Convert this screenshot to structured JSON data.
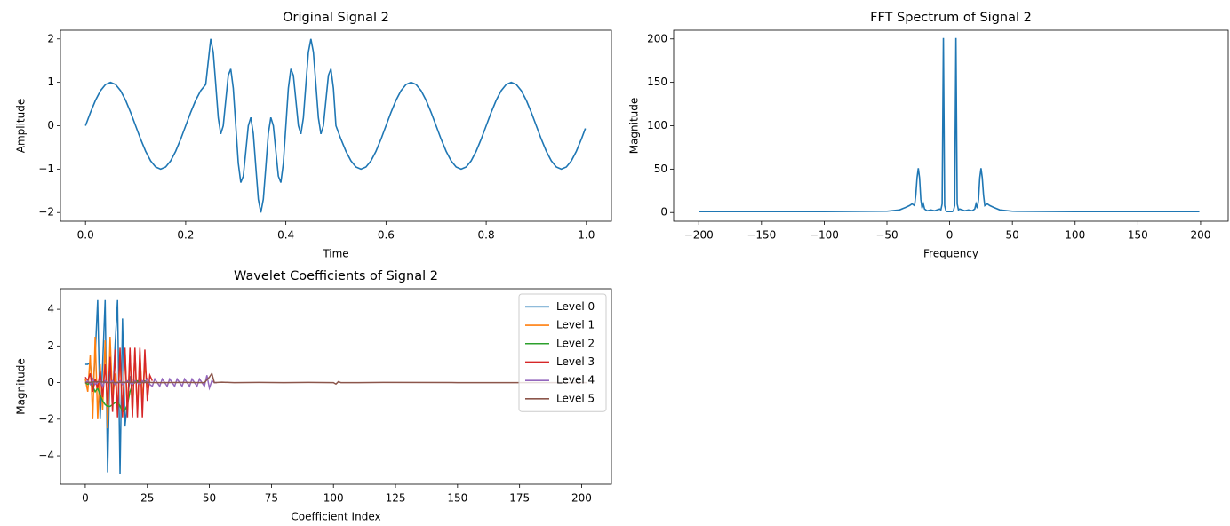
{
  "chart_data": [
    {
      "type": "line",
      "title": "Original Signal 2",
      "xlabel": "Time",
      "ylabel": "Amplitude",
      "color": "#1f77b4",
      "x": [
        0,
        0.01,
        0.02,
        0.03,
        0.04,
        0.05,
        0.06,
        0.07,
        0.08,
        0.09,
        0.1,
        0.11,
        0.12,
        0.13,
        0.14,
        0.15,
        0.16,
        0.17,
        0.18,
        0.19,
        0.2,
        0.21,
        0.22,
        0.23,
        0.24,
        0.25,
        0.255,
        0.26,
        0.265,
        0.27,
        0.275,
        0.28,
        0.285,
        0.29,
        0.295,
        0.3,
        0.305,
        0.31,
        0.315,
        0.32,
        0.325,
        0.33,
        0.335,
        0.34,
        0.345,
        0.35,
        0.355,
        0.36,
        0.365,
        0.37,
        0.375,
        0.38,
        0.385,
        0.39,
        0.395,
        0.4,
        0.405,
        0.41,
        0.415,
        0.42,
        0.425,
        0.43,
        0.435,
        0.44,
        0.445,
        0.45,
        0.455,
        0.46,
        0.465,
        0.47,
        0.475,
        0.48,
        0.485,
        0.49,
        0.495,
        0.5,
        0.51,
        0.52,
        0.53,
        0.54,
        0.55,
        0.56,
        0.57,
        0.58,
        0.59,
        0.6,
        0.61,
        0.62,
        0.63,
        0.64,
        0.65,
        0.66,
        0.67,
        0.68,
        0.69,
        0.7,
        0.71,
        0.72,
        0.73,
        0.74,
        0.75,
        0.76,
        0.77,
        0.78,
        0.79,
        0.8,
        0.81,
        0.82,
        0.83,
        0.84,
        0.85,
        0.86,
        0.87,
        0.88,
        0.89,
        0.9,
        0.91,
        0.92,
        0.93,
        0.94,
        0.95,
        0.96,
        0.97,
        0.98,
        0.99,
        0.998
      ],
      "values": [
        0,
        0.309,
        0.588,
        0.809,
        0.951,
        1,
        0.951,
        0.809,
        0.588,
        0.309,
        0,
        -0.309,
        -0.588,
        -0.809,
        -0.951,
        -1,
        -0.951,
        -0.809,
        -0.588,
        -0.309,
        0,
        0.309,
        0.588,
        0.809,
        0.951,
        2,
        1.695,
        0.951,
        0.184,
        -0.191,
        0,
        0.588,
        1.161,
        1.309,
        0.863,
        0,
        -0.863,
        -1.309,
        -1.161,
        -0.588,
        0,
        0.191,
        -0.184,
        -0.951,
        -1.695,
        -2,
        -1.695,
        -0.951,
        -0.184,
        0.191,
        0,
        -0.588,
        -1.161,
        -1.309,
        -0.863,
        0,
        0.863,
        1.309,
        1.161,
        0.588,
        0,
        -0.191,
        0.184,
        0.951,
        1.695,
        2,
        1.695,
        0.951,
        0.184,
        -0.191,
        0,
        0.588,
        1.161,
        1.309,
        0.863,
        0,
        -0.309,
        -0.588,
        -0.809,
        -0.951,
        -1,
        -0.951,
        -0.809,
        -0.588,
        -0.309,
        0,
        0.309,
        0.588,
        0.809,
        0.951,
        1,
        0.951,
        0.809,
        0.588,
        0.309,
        0,
        -0.309,
        -0.588,
        -0.809,
        -0.951,
        -1,
        -0.951,
        -0.809,
        -0.588,
        -0.309,
        0,
        0.309,
        0.588,
        0.809,
        0.951,
        1,
        0.951,
        0.809,
        0.588,
        0.309,
        0,
        -0.309,
        -0.588,
        -0.809,
        -0.951,
        -1,
        -0.951,
        -0.809,
        -0.588,
        -0.309,
        -0.063
      ],
      "xlim": [
        -0.05,
        1.05
      ],
      "ylim": [
        -2.2,
        2.2
      ],
      "xticks": [
        {
          "value": 0,
          "label": "0.0"
        },
        0.2,
        0.4,
        0.6,
        0.8,
        {
          "value": 1,
          "label": "1.0"
        }
      ],
      "yticks": [
        {
          "value": -2,
          "label": "−2"
        },
        {
          "value": -1,
          "label": "−1"
        },
        0,
        1,
        2
      ]
    },
    {
      "type": "line",
      "title": "FFT Spectrum of Signal 2",
      "xlabel": "Frequency",
      "ylabel": "Magnitude",
      "color": "#1f77b4",
      "x": [
        -200,
        -100,
        -50,
        -40,
        -35,
        -32,
        -30,
        -28,
        -27,
        -26,
        -25,
        -24,
        -23,
        -22,
        -21,
        -20,
        -18,
        -15,
        -12,
        -10,
        -8,
        -7,
        -6,
        -5,
        -4,
        -3,
        -2,
        0,
        2,
        3,
        4,
        5,
        6,
        7,
        8,
        10,
        12,
        15,
        18,
        20,
        21,
        22,
        23,
        24,
        25,
        26,
        27,
        28,
        30,
        32,
        35,
        40,
        50,
        100,
        199
      ],
      "values": [
        1,
        1,
        1.5,
        3,
        6,
        8,
        10,
        8,
        20,
        40,
        51,
        40,
        15,
        5,
        10,
        4,
        2,
        3,
        2,
        3,
        4,
        3,
        10,
        201,
        8,
        2,
        1,
        1,
        1,
        2,
        8,
        201,
        10,
        3,
        4,
        3,
        2,
        3,
        2,
        4,
        10,
        5,
        15,
        40,
        51,
        40,
        20,
        8,
        10,
        8,
        6,
        3,
        1.5,
        1,
        1
      ],
      "xlim": [
        -220,
        222
      ],
      "ylim": [
        -10,
        210
      ],
      "xticks": [
        {
          "value": -200,
          "label": "−200"
        },
        {
          "value": -150,
          "label": "−150"
        },
        {
          "value": -100,
          "label": "−100"
        },
        {
          "value": -50,
          "label": "−50"
        },
        0,
        50,
        100,
        150,
        200
      ],
      "yticks": [
        0,
        50,
        100,
        150,
        200
      ]
    },
    {
      "type": "multiline",
      "title": "Wavelet Coefficients of Signal 2",
      "xlabel": "Coefficient Index",
      "ylabel": "Magnitude",
      "legend": "upper right",
      "xlim": [
        -10,
        212
      ],
      "ylim": [
        -5.55,
        5.12
      ],
      "xticks": [
        0,
        25,
        50,
        75,
        100,
        125,
        150,
        175,
        200
      ],
      "yticks": [
        {
          "value": -4,
          "label": "−4"
        },
        {
          "value": -2,
          "label": "−2"
        },
        0,
        2,
        4
      ],
      "series": [
        {
          "name": "Level 0",
          "color": "#1f77b4",
          "values": [
            1.0,
            1.0,
            1.1,
            -0.5,
            1.5,
            4.5,
            -2.0,
            1.0,
            4.5,
            -4.9,
            1.5,
            -1.0,
            2.0,
            4.5,
            -5.0,
            3.5,
            -2.4,
            -1.0,
            0.3,
            0.1
          ]
        },
        {
          "name": "Level 1",
          "color": "#ff7f0e",
          "values": [
            0.2,
            -0.5,
            1.5,
            -2.0,
            2.5,
            -2.0,
            1.0,
            -1.5,
            2.3,
            -2.5,
            2.5,
            -1.0,
            0.5,
            -1.5,
            1.5,
            -1.8,
            1.8,
            -1.6,
            1.6,
            -1.8,
            1.8,
            -1.7,
            1.7,
            -1.0,
            1.0,
            -0.3,
            0.1
          ]
        },
        {
          "name": "Level 2",
          "color": "#2ca02c",
          "values": [
            0,
            -0.1,
            0,
            -0.2,
            -0.5,
            -0.3,
            -0.7,
            -1.0,
            -1.2,
            -1.3,
            -1.3,
            -1.2,
            -1.1,
            -1.0,
            -1.3,
            -1.6,
            -1.5,
            -1.2,
            -0.5,
            -0.1,
            0,
            0.1,
            0,
            0,
            0.1,
            0,
            0
          ]
        },
        {
          "name": "Level 3",
          "color": "#d62728",
          "values": [
            0.3,
            0.1,
            0.5,
            -0.5,
            0.2,
            -0.3,
            0.6,
            -0.8,
            1.0,
            -1.2,
            1.4,
            -1.6,
            1.8,
            -1.9,
            1.9,
            -1.9,
            1.9,
            -1.9,
            1.9,
            -1.9,
            1.9,
            -1.9,
            1.9,
            -1.9,
            1.8,
            -1.0,
            0.4,
            0.1
          ]
        },
        {
          "name": "Level 4",
          "color": "#9467bd",
          "values": [
            0,
            0.1,
            -0.1,
            0.2,
            -0.1,
            0,
            0.1,
            -0.2,
            0.1,
            0,
            0,
            0.1,
            -0.1,
            0,
            0.1,
            -0.1,
            0,
            0.1,
            0,
            -0.1,
            0.1,
            0,
            -0.1,
            0.1,
            0,
            0.2,
            -0.1,
            -0.2,
            0.2,
            0,
            -0.2,
            0.2,
            0,
            -0.2,
            0.2,
            0,
            -0.2,
            0.2,
            0,
            -0.2,
            0.2,
            0,
            -0.2,
            0.2,
            0,
            -0.2,
            0.2,
            0,
            -0.2,
            0.4,
            -0.3,
            0.1,
            0,
            0
          ]
        },
        {
          "name": "Level 5",
          "color": "#8c564b",
          "x": [
            0,
            5,
            10,
            20,
            30,
            40,
            48,
            50,
            51,
            52,
            55,
            60,
            70,
            80,
            90,
            100,
            101,
            102,
            103,
            110,
            120,
            150,
            180,
            202
          ],
          "values": [
            0,
            0.05,
            0,
            0.02,
            0,
            0.01,
            0,
            0.3,
            0.5,
            0,
            0.02,
            0,
            0.01,
            0,
            0.01,
            0,
            -0.08,
            0.05,
            0,
            0,
            0.01,
            0,
            0,
            0
          ]
        }
      ]
    }
  ]
}
